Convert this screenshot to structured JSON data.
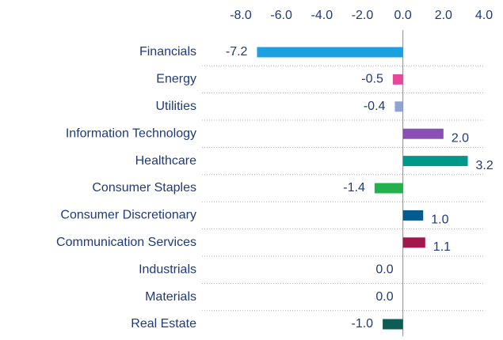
{
  "chart_data": {
    "type": "bar",
    "orientation": "horizontal",
    "categories": [
      "Financials",
      "Energy",
      "Utilities",
      "Information Technology",
      "Healthcare",
      "Consumer Staples",
      "Consumer Discretionary",
      "Communication Services",
      "Industrials",
      "Materials",
      "Real Estate"
    ],
    "values": [
      -7.2,
      -0.5,
      -0.4,
      2.0,
      3.2,
      -1.4,
      1.0,
      1.1,
      0.0,
      0.0,
      -1.0
    ],
    "value_labels": [
      "-7.2",
      "-0.5",
      "-0.4",
      "2.0",
      "3.2",
      "-1.4",
      "1.0",
      "1.1",
      "0.0",
      "0.0",
      "-1.0"
    ],
    "colors": [
      "#1ba1e2",
      "#e8489a",
      "#8ea6cf",
      "#8a4fb6",
      "#00988a",
      "#22b14c",
      "#005b8e",
      "#a3174f",
      "#7f7f7f",
      "#7f7f7f",
      "#0c5e55"
    ],
    "xlim": [
      -8,
      4
    ],
    "xticks": [
      {
        "value": -8,
        "label": "-8.0"
      },
      {
        "value": -6,
        "label": "-6.0"
      },
      {
        "value": -4,
        "label": "-4.0"
      },
      {
        "value": -2,
        "label": "-2.0"
      },
      {
        "value": 0,
        "label": "0.0"
      },
      {
        "value": 2,
        "label": "2.0"
      },
      {
        "value": 4,
        "label": "4.0"
      }
    ]
  }
}
